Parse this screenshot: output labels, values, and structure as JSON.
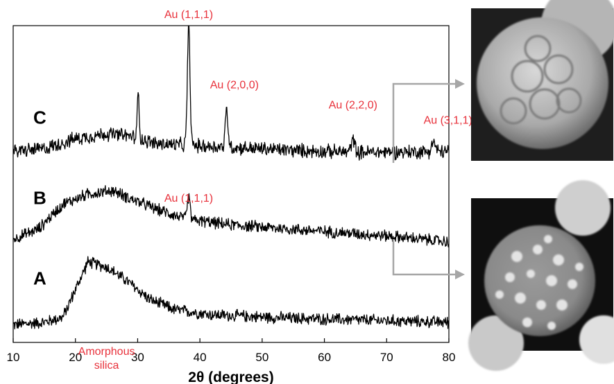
{
  "chart_data": {
    "type": "line",
    "title": "",
    "xlabel": "2θ (degrees)",
    "ylabel": "",
    "xlim": [
      10,
      80
    ],
    "xticks": [
      10,
      20,
      30,
      40,
      50,
      60,
      70,
      80
    ],
    "grid": false,
    "legend": "none",
    "series": [
      {
        "name": "A",
        "color": "#000000",
        "baseline": 0,
        "noise": 0.1,
        "profile": [
          [
            10,
            0.05
          ],
          [
            15,
            0.1
          ],
          [
            18,
            0.2
          ],
          [
            20,
            0.75
          ],
          [
            22,
            1.3
          ],
          [
            25,
            1.2
          ],
          [
            28,
            0.95
          ],
          [
            32,
            0.55
          ],
          [
            36,
            0.35
          ],
          [
            42,
            0.25
          ],
          [
            55,
            0.18
          ],
          [
            80,
            0.1
          ]
        ],
        "peaks": []
      },
      {
        "name": "B",
        "color": "#000000",
        "baseline": 1.6,
        "noise": 0.1,
        "profile": [
          [
            10,
            0.15
          ],
          [
            14,
            0.35
          ],
          [
            18,
            0.85
          ],
          [
            22,
            1.05
          ],
          [
            26,
            1.12
          ],
          [
            29,
            0.95
          ],
          [
            33,
            0.75
          ],
          [
            38,
            0.55
          ],
          [
            44,
            0.45
          ],
          [
            55,
            0.35
          ],
          [
            70,
            0.22
          ],
          [
            80,
            0.1
          ]
        ],
        "peaks": [
          [
            38.2,
            0.45,
            0.3
          ]
        ]
      },
      {
        "name": "C",
        "color": "#000000",
        "baseline": 3.2,
        "noise": 0.12,
        "profile": [
          [
            10,
            0.3
          ],
          [
            15,
            0.35
          ],
          [
            20,
            0.55
          ],
          [
            25,
            0.65
          ],
          [
            29,
            0.6
          ],
          [
            33,
            0.45
          ],
          [
            38,
            0.42
          ],
          [
            45,
            0.38
          ],
          [
            55,
            0.32
          ],
          [
            65,
            0.28
          ],
          [
            80,
            0.3
          ]
        ],
        "peaks": [
          [
            30.1,
            0.9,
            0.22
          ],
          [
            38.2,
            2.35,
            0.3
          ],
          [
            44.3,
            0.75,
            0.3
          ],
          [
            64.6,
            0.25,
            0.4
          ],
          [
            77.5,
            0.2,
            0.4
          ]
        ]
      }
    ],
    "annotations": [
      {
        "text": "Au (1,1,1)",
        "x": 38.2,
        "series": "C",
        "placement": "above peak"
      },
      {
        "text": "Au (2,0,0)",
        "x": 44.3,
        "series": "C",
        "placement": "above peak"
      },
      {
        "text": "Au (2,2,0)",
        "x": 64.6,
        "series": "C",
        "placement": "above peak"
      },
      {
        "text": "Au (3,1,1)",
        "x": 77.5,
        "series": "C",
        "placement": "above peak"
      },
      {
        "text": "Au (1,1,1)",
        "x": 38.2,
        "series": "B",
        "placement": "above peak"
      },
      {
        "text": "Amorphous silica",
        "x": 25,
        "series": "A",
        "placement": "below hump"
      }
    ],
    "insets": [
      {
        "name": "sem-image-top",
        "linked_series": "C",
        "description": "gray SEM micrograph of particle"
      },
      {
        "name": "sem-image-bottom",
        "linked_series": "A",
        "description": "gray SEM micrograph of particle"
      }
    ],
    "colors": {
      "annotation": "#e8303a",
      "trace": "#000000",
      "arrow": "#a6a6a6"
    }
  }
}
